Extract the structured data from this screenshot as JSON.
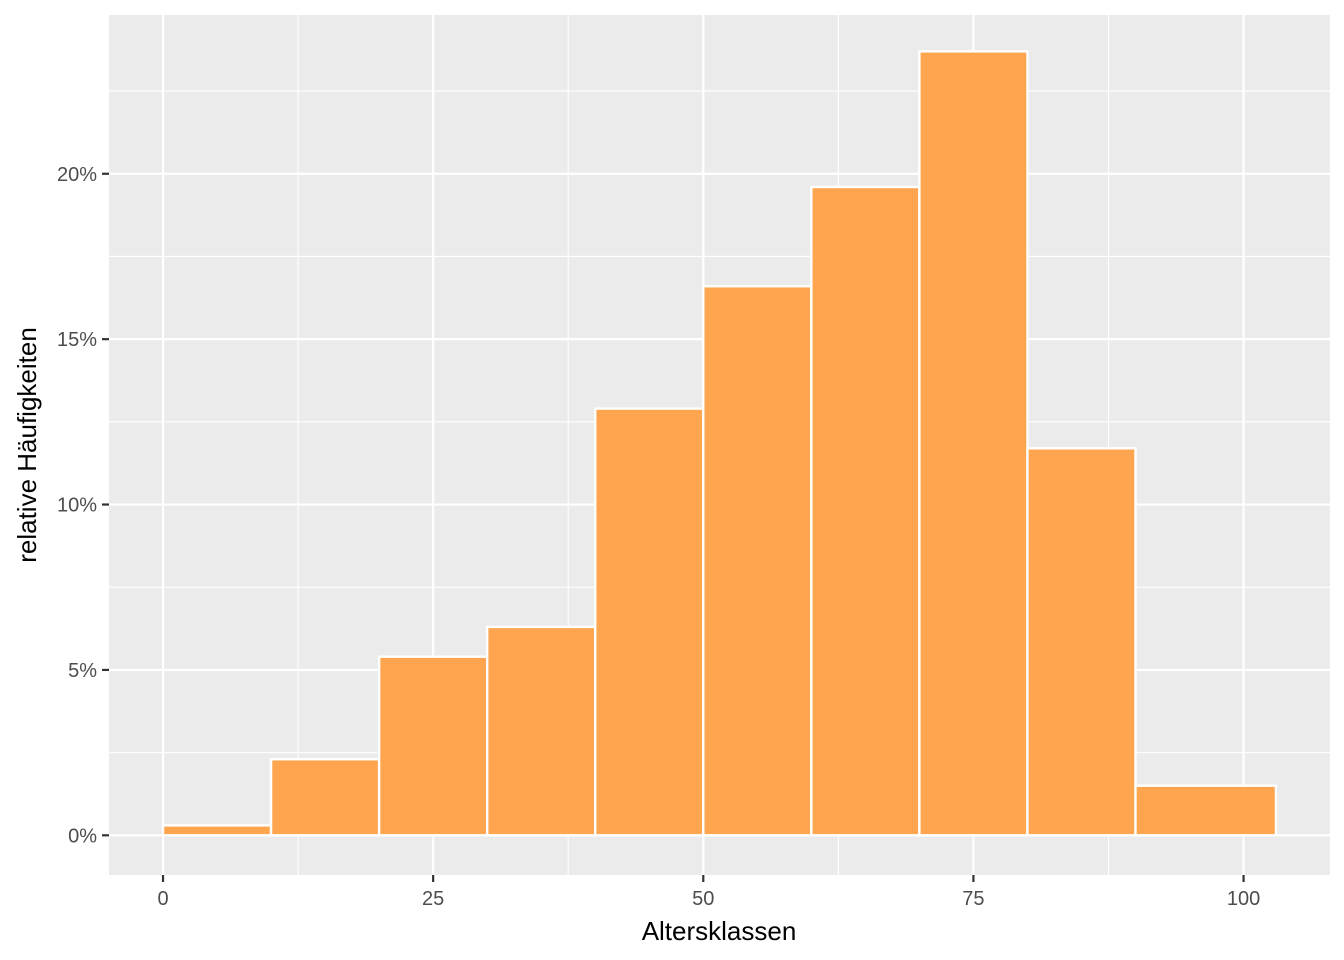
{
  "chart_data": {
    "type": "bar",
    "subtype": "histogram",
    "title": "",
    "xlabel": "Altersklassen",
    "ylabel": "relative Häufigkeiten",
    "bin_edges": [
      0,
      10,
      20,
      30,
      40,
      50,
      60,
      70,
      80,
      90,
      103
    ],
    "values": [
      0.3,
      2.3,
      5.4,
      6.3,
      12.9,
      16.6,
      19.6,
      23.7,
      11.7,
      1.5
    ],
    "value_unit": "%",
    "xlim": [
      -5,
      108
    ],
    "ylim": [
      -1.2,
      24.8
    ],
    "x_ticks": [
      0,
      25,
      50,
      75,
      100
    ],
    "x_tick_labels": [
      "0",
      "25",
      "50",
      "75",
      "100"
    ],
    "y_ticks": [
      0,
      5,
      10,
      15,
      20
    ],
    "y_tick_labels": [
      "0%",
      "5%",
      "10%",
      "15%",
      "20%"
    ],
    "bar_color": "#FFA54F",
    "bar_outline": "#FFFFFF",
    "panel_background": "#EBEBEB",
    "grid": true,
    "legend": "none"
  }
}
